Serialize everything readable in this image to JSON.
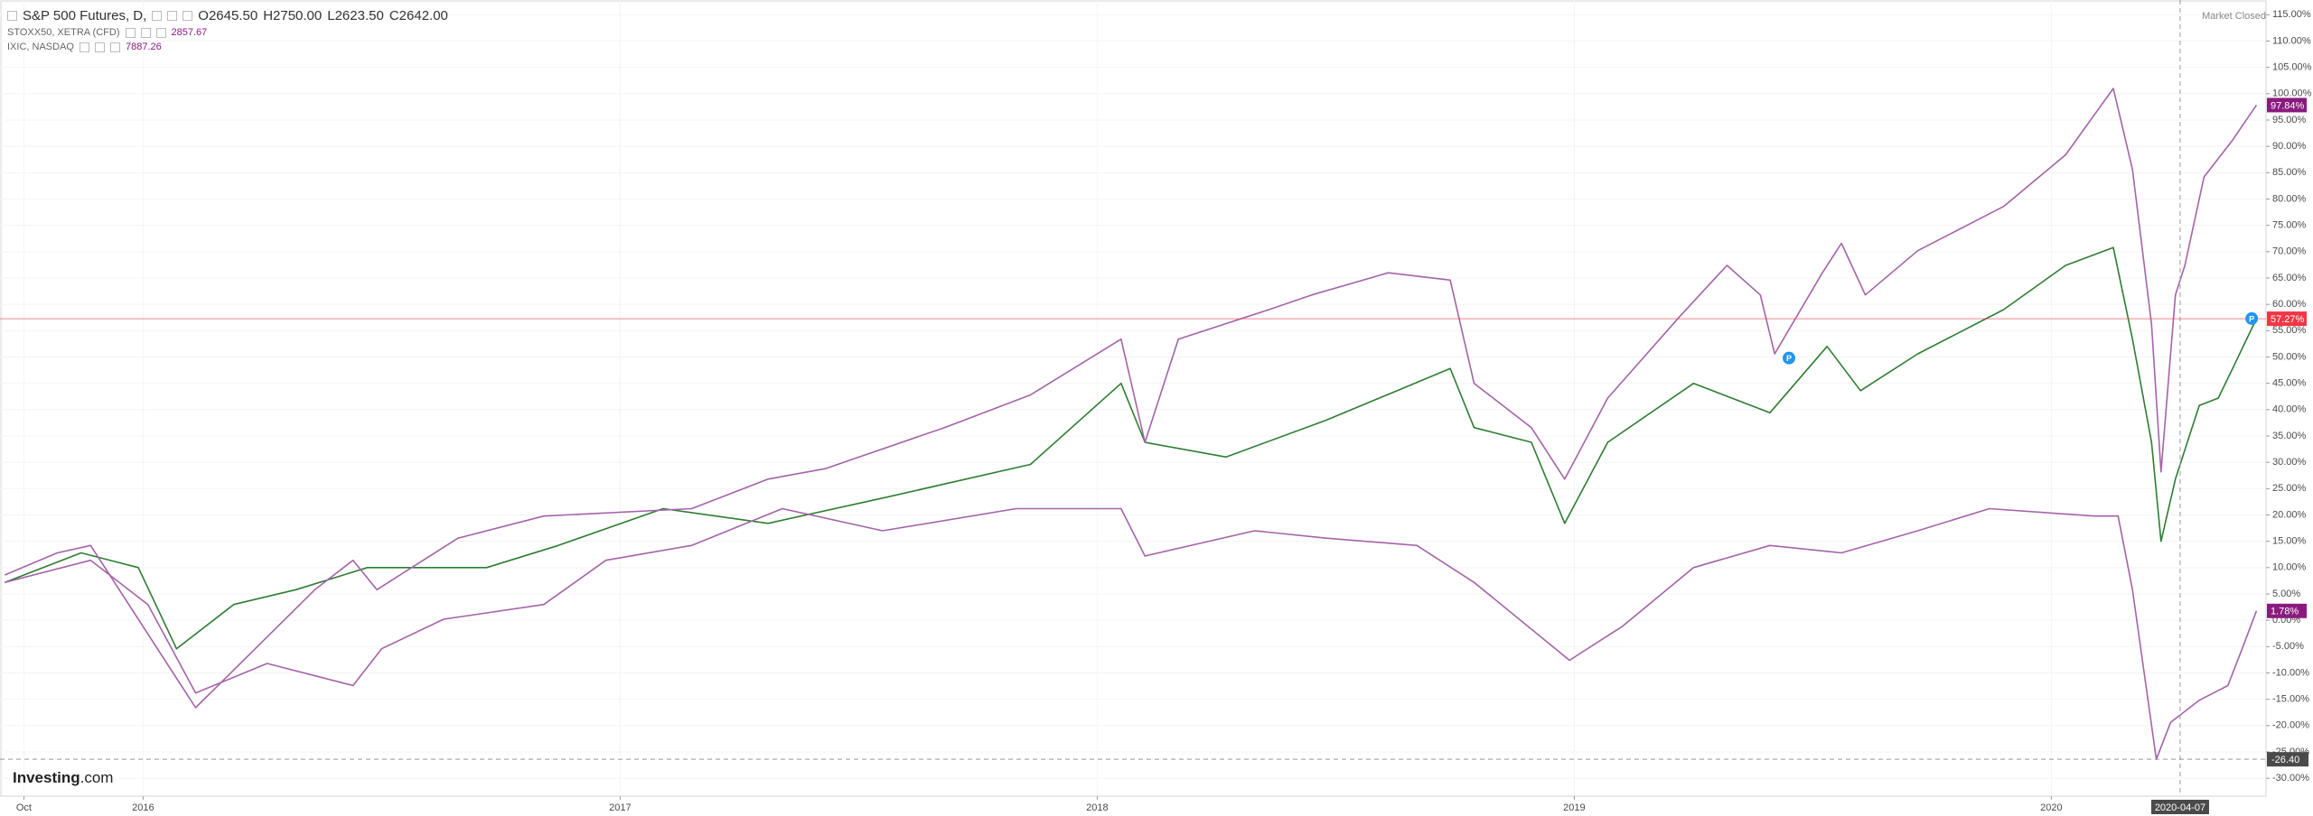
{
  "chart_data": {
    "type": "line",
    "header": {
      "quote": [
        "O2645.50",
        "H2750.00",
        "L2623.50",
        "C2642.00"
      ],
      "status": "Market Closed",
      "watermark": [
        "Investing",
        ".com"
      ]
    },
    "xlim": [
      2015.7,
      2020.45
    ],
    "xticks": [
      {
        "value": 2015.75,
        "label": "Oct"
      },
      2016,
      2017,
      2018,
      2019,
      2020
    ],
    "ylim": [
      -33.4,
      117.8
    ],
    "yticks": [
      {
        "value": -30,
        "label": "-30.00%"
      },
      {
        "value": -25,
        "label": "-25.00%"
      },
      {
        "value": -20,
        "label": "-20.00%"
      },
      {
        "value": -15,
        "label": "-15.00%"
      },
      {
        "value": -10,
        "label": "-10.00%"
      },
      {
        "value": -5,
        "label": "-5.00%"
      },
      {
        "value": 0,
        "label": "0.00%"
      },
      {
        "value": 5,
        "label": "5.00%"
      },
      {
        "value": 10,
        "label": "10.00%"
      },
      {
        "value": 15,
        "label": "15.00%"
      },
      {
        "value": 20,
        "label": "20.00%"
      },
      {
        "value": 25,
        "label": "25.00%"
      },
      {
        "value": 30,
        "label": "30.00%"
      },
      {
        "value": 35,
        "label": "35.00%"
      },
      {
        "value": 40,
        "label": "40.00%"
      },
      {
        "value": 45,
        "label": "45.00%"
      },
      {
        "value": 50,
        "label": "50.00%"
      },
      {
        "value": 55,
        "label": "55.00%"
      },
      {
        "value": 60,
        "label": "60.00%"
      },
      {
        "value": 65,
        "label": "65.00%"
      },
      {
        "value": 70,
        "label": "70.00%"
      },
      {
        "value": 75,
        "label": "75.00%"
      },
      {
        "value": 80,
        "label": "80.00%"
      },
      {
        "value": 85,
        "label": "85.00%"
      },
      {
        "value": 90,
        "label": "90.00%"
      },
      {
        "value": 95,
        "label": "95.00%"
      },
      {
        "value": 100,
        "label": "100.00%"
      },
      {
        "value": 105,
        "label": "105.00%"
      },
      {
        "value": 110,
        "label": "110.00%"
      },
      {
        "value": 115,
        "label": "115.00%"
      }
    ],
    "grid": true,
    "series": [
      {
        "name": "S&P 500 Futures, D,",
        "color": "#2e7d32",
        "tag_color": "#f23645",
        "price_line": true,
        "last_label": "57.27%",
        "x": [
          2015.71,
          2015.87,
          2015.99,
          2016.07,
          2016.19,
          2016.32,
          2016.47,
          2016.63,
          2016.72,
          2016.87,
          2017.09,
          2017.31,
          2017.55,
          2017.86,
          2018.05,
          2018.1,
          2018.27,
          2018.48,
          2018.74,
          2018.79,
          2018.91,
          2018.98,
          2019.07,
          2019.25,
          2019.41,
          2019.53,
          2019.6,
          2019.72,
          2019.9,
          2020.03,
          2020.13,
          2020.17,
          2020.21,
          2020.23,
          2020.26,
          2020.31,
          2020.35,
          2020.38,
          2020.43
        ],
        "values": [
          7.2,
          12.8,
          10,
          -5.4,
          3,
          5.8,
          10,
          10,
          10,
          14.2,
          21.2,
          18.4,
          23.2,
          29.6,
          45,
          33.8,
          31,
          38,
          47.8,
          36.6,
          33.8,
          18.4,
          33.8,
          45,
          39.4,
          52,
          43.6,
          50.6,
          59,
          67.4,
          70.8,
          53.4,
          33.8,
          15,
          26.8,
          40.8,
          42.2,
          47.8,
          57.27
        ]
      },
      {
        "name": "STOXX50, XETRA (CFD)",
        "quote": "2857.67",
        "color": "#a463a8",
        "tag_color": "#8b1a7f",
        "last_label": "1.78%",
        "x": [
          2015.71,
          2015.89,
          2016.01,
          2016.11,
          2016.26,
          2016.44,
          2016.5,
          2016.63,
          2016.84,
          2016.97,
          2017.15,
          2017.34,
          2017.55,
          2017.83,
          2018.05,
          2018.1,
          2018.33,
          2018.48,
          2018.67,
          2018.79,
          2018.99,
          2019.1,
          2019.25,
          2019.41,
          2019.56,
          2019.72,
          2019.87,
          2020.09,
          2020.14,
          2020.17,
          2020.22,
          2020.25,
          2020.31,
          2020.37,
          2020.4,
          2020.43
        ],
        "values": [
          7.2,
          11.4,
          3,
          -13.8,
          -8.2,
          -12.4,
          -5.4,
          0.2,
          3,
          11.4,
          14.2,
          21.2,
          17,
          21.2,
          21.2,
          12.2,
          17,
          15.6,
          14.2,
          7.2,
          -7.6,
          -1.2,
          10,
          14.2,
          12.8,
          17,
          21.2,
          19.8,
          19.8,
          5.8,
          -26.4,
          -19.4,
          -15.2,
          -12.4,
          -5.4,
          1.78
        ]
      },
      {
        "name": "IXIC, NASDAQ",
        "quote": "7887.26",
        "color": "#a463a8",
        "tag_color": "#8b1a7f",
        "last_label": "97.84%",
        "x": [
          2015.71,
          2015.82,
          2015.89,
          2016.11,
          2016.36,
          2016.44,
          2016.49,
          2016.66,
          2016.84,
          2017.15,
          2017.31,
          2017.43,
          2017.68,
          2017.86,
          2018.05,
          2018.1,
          2018.17,
          2018.36,
          2018.45,
          2018.61,
          2018.74,
          2018.79,
          2018.91,
          2018.98,
          2019.07,
          2019.22,
          2019.32,
          2019.39,
          2019.42,
          2019.52,
          2019.56,
          2019.61,
          2019.72,
          2019.9,
          2020.03,
          2020.13,
          2020.17,
          2020.21,
          2020.23,
          2020.26,
          2020.28,
          2020.32,
          2020.38,
          2020.43
        ],
        "values": [
          8.6,
          12.8,
          14.2,
          -16.6,
          5.8,
          11.4,
          5.8,
          15.6,
          19.8,
          21.2,
          26.8,
          28.8,
          36.6,
          42.8,
          53.4,
          33.8,
          53.4,
          59,
          61.8,
          66,
          64.6,
          45,
          36.6,
          26.8,
          42.2,
          57.6,
          67.4,
          61.8,
          50.6,
          66,
          71.6,
          61.8,
          70.2,
          78.6,
          88.4,
          101,
          85.6,
          56.2,
          28.2,
          61.8,
          67.4,
          84.2,
          91.2,
          97.84
        ]
      }
    ],
    "markers": [
      {
        "x": 2019.45,
        "y": 49.8,
        "label": "P"
      },
      {
        "x": 2020.42,
        "y": 57.3,
        "label": "P"
      }
    ],
    "crosshair": {
      "x": 2020.27,
      "x_label": "2020-04-07",
      "y": -26.4,
      "y_label": "-26.40"
    }
  }
}
